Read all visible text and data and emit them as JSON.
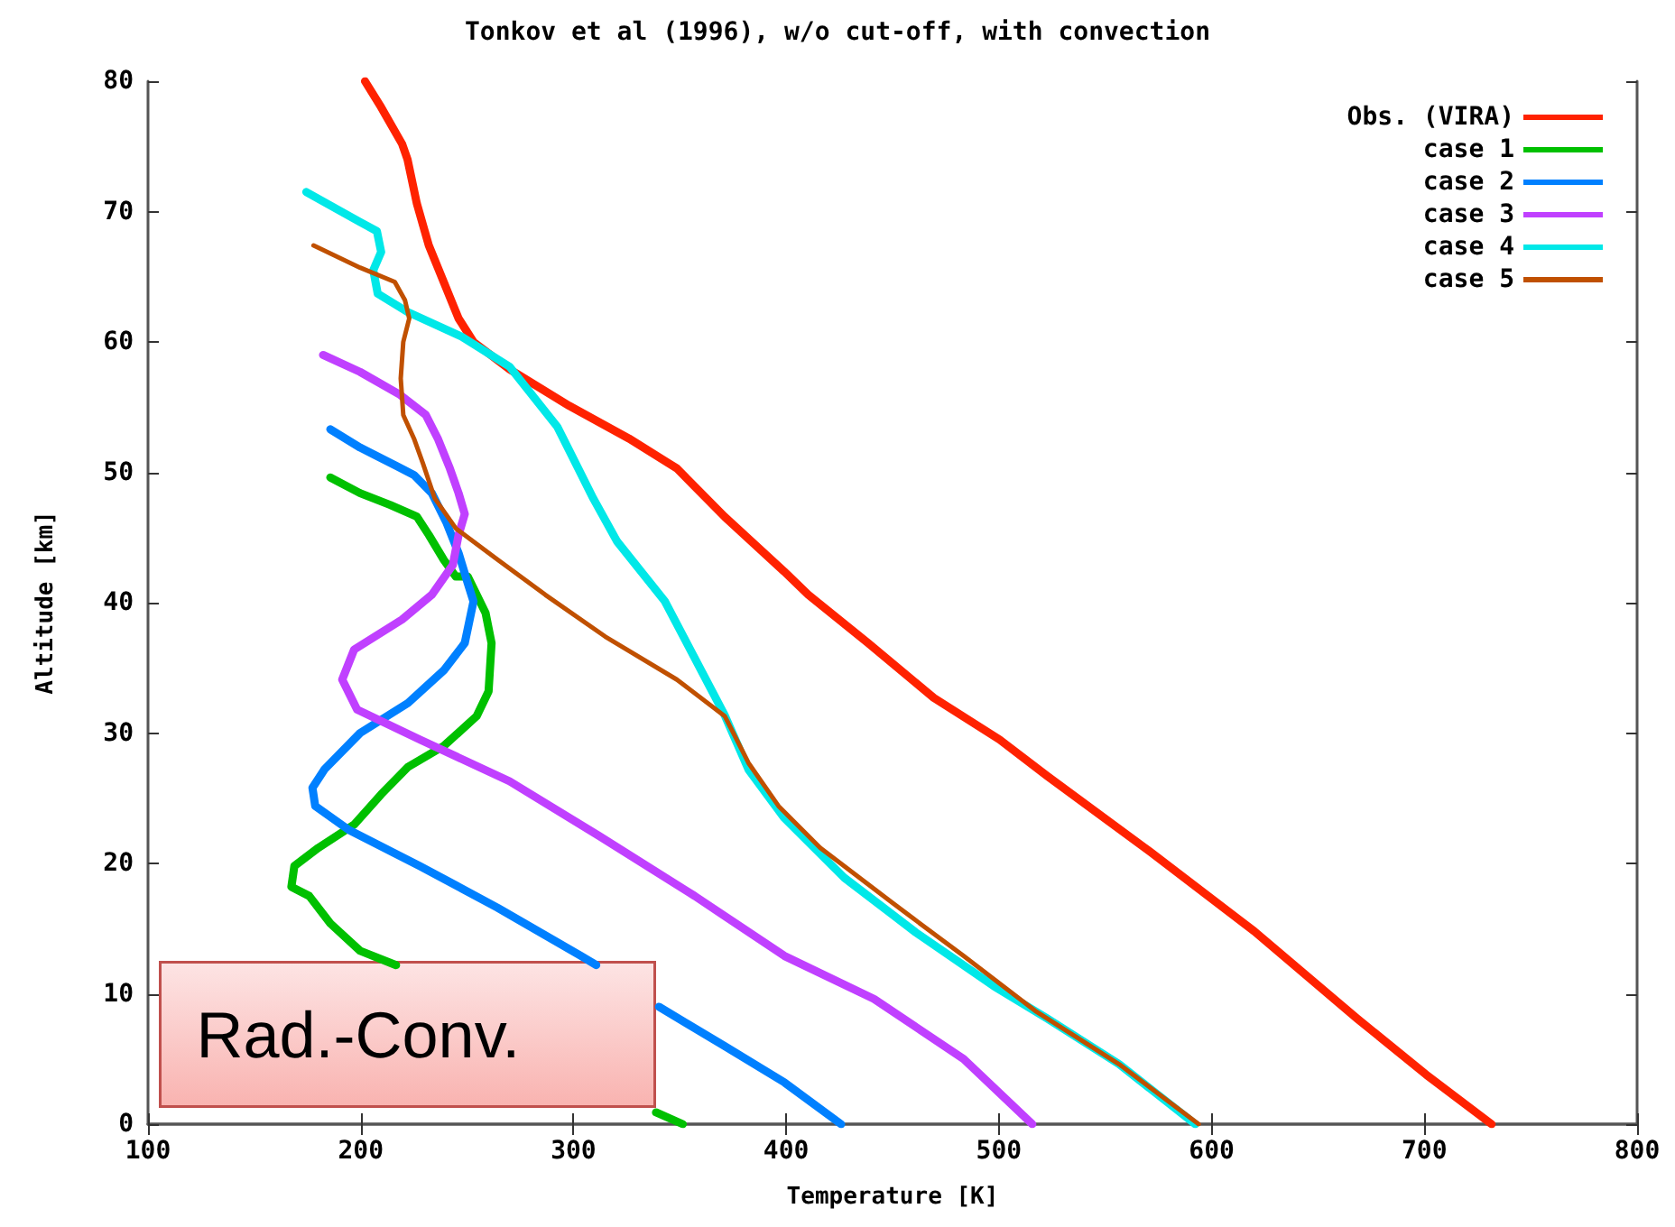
{
  "chart_data": {
    "type": "line",
    "title": "Tonkov et al (1996), w/o cut-off, with convection",
    "xlabel": "Temperature [K]",
    "ylabel": "Altitude [km]",
    "xlim": [
      100,
      800
    ],
    "xticks": [
      100,
      200,
      300,
      400,
      500,
      600,
      700,
      800
    ],
    "ylim": [
      0,
      80
    ],
    "yticks": [
      0,
      10,
      20,
      30,
      40,
      50,
      60,
      70,
      80
    ],
    "grid": false,
    "legend": "top right",
    "annotations": [
      "Rad.-Conv."
    ],
    "series": [
      {
        "name": "Obs. (VIRA)",
        "color": "#ff2200",
        "x": [
          202,
          209.6,
          219.4,
          222,
          226.4,
          232,
          239,
          246,
          253,
          270,
          298,
          326,
          348.6,
          371,
          399,
          410.4,
          438.5,
          469.4,
          500.3,
          522.7,
          571,
          620,
          668.4,
          700.8,
          731.6
        ],
        "values": [
          80,
          78,
          75.2,
          74,
          70.6,
          67.4,
          64.6,
          61.8,
          60,
          57.9,
          55.1,
          52.6,
          50.3,
          46.6,
          42.4,
          40.6,
          36.9,
          32.7,
          29.5,
          26.7,
          20.9,
          14.8,
          8.1,
          3.8,
          0
        ]
      },
      {
        "name": "case 1",
        "color": "#00c000",
        "x": [
          185.7,
          199.7,
          213.8,
          226.4,
          232,
          239,
          244.7,
          250.3,
          258.7,
          261.5,
          260.1,
          254.5,
          239,
          222.2,
          209.6,
          197,
          180.1,
          168.8,
          167.4,
          175.8,
          185.7,
          199.7,
          216.6,
          null,
          338.8,
          351.4
        ],
        "values": [
          49.6,
          48.4,
          47.5,
          46.6,
          45.2,
          43.3,
          42,
          42,
          39.2,
          36.9,
          33.2,
          31.3,
          29,
          27.4,
          25.3,
          23,
          21.2,
          19.8,
          18.2,
          17.5,
          15.4,
          13.3,
          12.2,
          null,
          0.9,
          0
        ]
      },
      {
        "name": "case 2",
        "color": "#0080ff",
        "x": [
          185.7,
          199.7,
          216.6,
          225,
          233.4,
          240.4,
          246,
          250.3,
          253,
          248.9,
          239,
          222.2,
          199.7,
          182.9,
          177.3,
          178.6,
          194.1,
          227.8,
          264.3,
          303.6,
          310.7,
          null,
          340.2,
          371,
          399.2,
          425.8
        ],
        "values": [
          53.3,
          51.9,
          50.5,
          49.8,
          48.4,
          46.1,
          43.8,
          41.5,
          40.1,
          36.9,
          34.8,
          32.3,
          30,
          27.2,
          25.8,
          24.4,
          22.6,
          19.8,
          16.6,
          12.9,
          12.2,
          null,
          9,
          6,
          3.2,
          0
        ]
      },
      {
        "name": "case 3",
        "color": "#c040ff",
        "x": [
          182.3,
          199.7,
          218,
          230.6,
          236.2,
          241.9,
          246,
          248.9,
          246,
          243.3,
          233.4,
          219.4,
          196.9,
          191.3,
          198.3,
          227.8,
          270,
          312.1,
          357,
          399.2,
          441.3,
          483.4,
          515.7
        ],
        "values": [
          59,
          57.7,
          56,
          54.4,
          52.6,
          50.3,
          48.4,
          46.8,
          45.2,
          42.9,
          40.6,
          38.7,
          36.4,
          34.1,
          31.8,
          29.5,
          26.3,
          22.1,
          17.5,
          12.9,
          9.6,
          5,
          0
        ]
      },
      {
        "name": "case 4",
        "color": "#00e8e8",
        "x": [
          174.4,
          199.7,
          207.6,
          209.6,
          205.9,
          208,
          222,
          247.5,
          270,
          292.4,
          309.3,
          320.5,
          343,
          371,
          382.3,
          399,
          427.3,
          461,
          497.5,
          522.7,
          556.5,
          592.3
        ],
        "values": [
          71.5,
          69.2,
          68.5,
          66.9,
          65.5,
          63.7,
          62.3,
          60.4,
          58.1,
          53.5,
          48,
          44.7,
          40.1,
          31.4,
          27.2,
          23.5,
          18.9,
          14.7,
          10.6,
          8.1,
          4.6,
          0
        ]
      },
      {
        "name": "case 5",
        "color": "#c05000",
        "x": [
          177.8,
          199.7,
          216,
          220.8,
          222.8,
          220,
          218.8,
          220,
          225,
          229.2,
          234.8,
          244.7,
          264.3,
          286.8,
          314.9,
          348.6,
          371.1,
          382.3,
          396.4,
          416,
          449.7,
          483.4,
          517,
          556.5,
          593.9
        ],
        "values": [
          67.4,
          65.7,
          64.6,
          63.2,
          61.8,
          60,
          57.2,
          54.4,
          52.6,
          50.7,
          48,
          45.7,
          43.3,
          40.6,
          37.4,
          34.1,
          31.3,
          27.7,
          24.4,
          21.2,
          17,
          12.9,
          8.7,
          4.6,
          0
        ]
      }
    ]
  }
}
